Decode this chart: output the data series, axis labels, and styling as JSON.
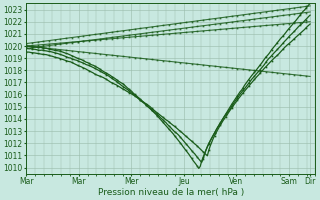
{
  "xlabel": "Pression niveau de la mer( hPa )",
  "ylim": [
    1009.5,
    1023.5
  ],
  "yticks": [
    1010,
    1011,
    1012,
    1013,
    1014,
    1015,
    1016,
    1017,
    1018,
    1019,
    1020,
    1021,
    1022,
    1023
  ],
  "xtick_labels": [
    "Mar",
    "Mar",
    "Mer",
    "Jeu",
    "Ven",
    "Sam",
    "Dir"
  ],
  "xtick_positions": [
    0,
    1,
    2,
    3,
    4,
    5,
    5.4
  ],
  "xlim": [
    0,
    5.5
  ],
  "bg_color": "#c8e8e0",
  "grid_color": "#99bbaa",
  "line_color": "#1a5c1a",
  "minor_x_step": 0.1667
}
